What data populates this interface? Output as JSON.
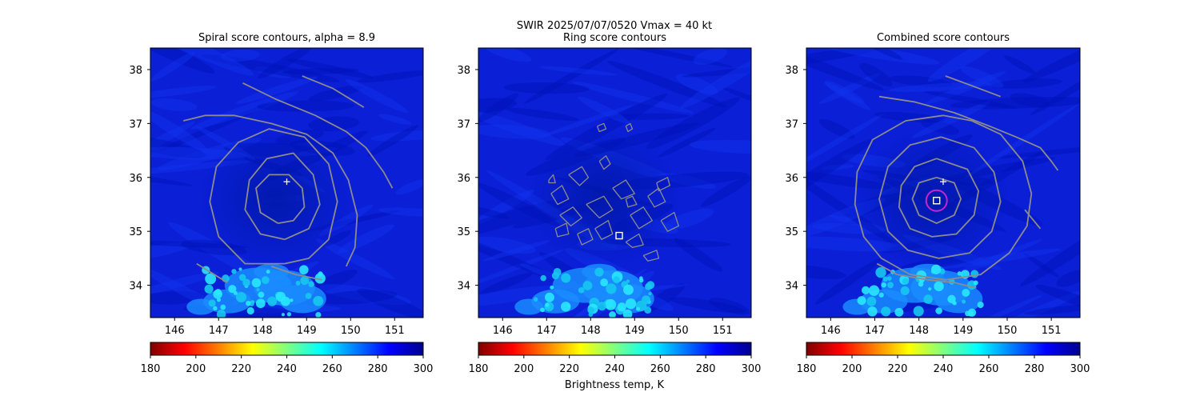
{
  "figure": {
    "suptitle_line1": "SWIR  2025/07/07/0520    Vmax = 40 kt",
    "colorbar_label": "Brightness temp, K"
  },
  "chart_data": [
    {
      "type": "heatmap",
      "title": "Spiral score contours, alpha =  8.9",
      "xlim": [
        145.45,
        151.65
      ],
      "ylim": [
        33.4,
        38.4
      ],
      "xticks": [
        146,
        147,
        148,
        149,
        150,
        151
      ],
      "yticks": [
        34,
        35,
        36,
        37,
        38
      ],
      "colorbar": {
        "cmap": "jet_r",
        "range": [
          180,
          300
        ],
        "ticks": [
          180,
          200,
          220,
          240,
          260,
          280,
          300
        ]
      },
      "markers": [
        {
          "kind": "plus",
          "lon": 148.55,
          "lat": 35.92,
          "color": "#ffffff"
        }
      ],
      "contours": [
        [
          [
            147.55,
            37.75
          ],
          [
            148.3,
            37.45
          ],
          [
            149.2,
            37.15
          ],
          [
            149.9,
            36.85
          ],
          [
            150.35,
            36.55
          ],
          [
            150.75,
            36.1
          ],
          [
            150.95,
            35.8
          ]
        ],
        [
          [
            148.9,
            37.88
          ],
          [
            149.6,
            37.65
          ],
          [
            150.3,
            37.3
          ]
        ],
        [
          [
            146.2,
            37.05
          ],
          [
            146.7,
            37.15
          ],
          [
            147.35,
            37.15
          ],
          [
            148.2,
            37.0
          ],
          [
            149.0,
            36.8
          ],
          [
            149.6,
            36.45
          ],
          [
            149.95,
            35.95
          ],
          [
            150.15,
            35.3
          ],
          [
            150.1,
            34.7
          ],
          [
            149.9,
            34.35
          ]
        ],
        [
          [
            146.5,
            34.4
          ],
          [
            147.2,
            34.05
          ]
        ],
        [
          [
            148.2,
            34.35
          ],
          [
            148.75,
            34.2
          ],
          [
            149.35,
            34.1
          ]
        ],
        [
          [
            148.5,
            34.4
          ],
          [
            147.6,
            34.4
          ],
          [
            147.0,
            34.9
          ],
          [
            146.8,
            35.55
          ],
          [
            146.95,
            36.2
          ],
          [
            147.45,
            36.65
          ],
          [
            148.15,
            36.9
          ],
          [
            148.95,
            36.75
          ],
          [
            149.5,
            36.25
          ],
          [
            149.7,
            35.55
          ],
          [
            149.5,
            34.85
          ],
          [
            149.05,
            34.5
          ],
          [
            148.5,
            34.4
          ]
        ],
        [
          [
            148.5,
            34.85
          ],
          [
            147.95,
            34.95
          ],
          [
            147.6,
            35.4
          ],
          [
            147.7,
            35.95
          ],
          [
            148.1,
            36.35
          ],
          [
            148.7,
            36.45
          ],
          [
            149.15,
            36.05
          ],
          [
            149.3,
            35.5
          ],
          [
            149.05,
            35.05
          ],
          [
            148.5,
            34.85
          ]
        ],
        [
          [
            148.35,
            35.15
          ],
          [
            147.95,
            35.35
          ],
          [
            147.85,
            35.8
          ],
          [
            148.15,
            36.05
          ],
          [
            148.6,
            36.05
          ],
          [
            148.9,
            35.8
          ],
          [
            148.95,
            35.45
          ],
          [
            148.7,
            35.2
          ],
          [
            148.35,
            35.15
          ]
        ]
      ],
      "contour_color": "#8c8c8c"
    },
    {
      "type": "heatmap",
      "title": "Ring score contours",
      "xlim": [
        145.45,
        151.65
      ],
      "ylim": [
        33.4,
        38.4
      ],
      "xticks": [
        146,
        147,
        148,
        149,
        150,
        151
      ],
      "yticks": [
        34,
        35,
        36,
        37,
        38
      ],
      "colorbar": {
        "cmap": "jet_r",
        "range": [
          180,
          300
        ],
        "ticks": [
          180,
          200,
          220,
          240,
          260,
          280,
          300
        ]
      },
      "markers": [
        {
          "kind": "square",
          "lon": 148.65,
          "lat": 34.92,
          "color": "#ffffff"
        }
      ],
      "contours": [
        [
          [
            147.5,
            36.05
          ],
          [
            147.8,
            36.2
          ],
          [
            147.95,
            36.0
          ],
          [
            147.75,
            35.85
          ],
          [
            147.5,
            36.05
          ]
        ],
        [
          [
            147.1,
            35.7
          ],
          [
            147.35,
            35.85
          ],
          [
            147.5,
            35.6
          ],
          [
            147.25,
            35.5
          ],
          [
            147.1,
            35.7
          ]
        ],
        [
          [
            147.3,
            35.3
          ],
          [
            147.6,
            35.45
          ],
          [
            147.8,
            35.25
          ],
          [
            147.55,
            35.1
          ],
          [
            147.3,
            35.3
          ]
        ],
        [
          [
            147.9,
            35.5
          ],
          [
            148.3,
            35.65
          ],
          [
            148.5,
            35.4
          ],
          [
            148.2,
            35.25
          ],
          [
            147.9,
            35.5
          ]
        ],
        [
          [
            148.5,
            35.8
          ],
          [
            148.8,
            35.95
          ],
          [
            149.0,
            35.7
          ],
          [
            148.7,
            35.6
          ],
          [
            148.5,
            35.8
          ]
        ],
        [
          [
            148.9,
            35.3
          ],
          [
            149.2,
            35.45
          ],
          [
            149.4,
            35.2
          ],
          [
            149.1,
            35.05
          ],
          [
            148.9,
            35.3
          ]
        ],
        [
          [
            149.3,
            35.65
          ],
          [
            149.55,
            35.8
          ],
          [
            149.7,
            35.55
          ],
          [
            149.45,
            35.45
          ],
          [
            149.3,
            35.65
          ]
        ],
        [
          [
            149.6,
            35.2
          ],
          [
            149.9,
            35.35
          ],
          [
            150.0,
            35.1
          ],
          [
            149.75,
            35.0
          ],
          [
            149.6,
            35.2
          ]
        ],
        [
          [
            149.5,
            35.9
          ],
          [
            149.75,
            36.0
          ],
          [
            149.8,
            35.85
          ],
          [
            149.55,
            35.75
          ],
          [
            149.5,
            35.9
          ]
        ],
        [
          [
            148.1,
            35.05
          ],
          [
            148.4,
            35.2
          ],
          [
            148.5,
            34.95
          ],
          [
            148.25,
            34.85
          ],
          [
            148.1,
            35.05
          ]
        ],
        [
          [
            147.7,
            34.95
          ],
          [
            147.95,
            35.05
          ],
          [
            148.05,
            34.85
          ],
          [
            147.8,
            34.75
          ],
          [
            147.7,
            34.95
          ]
        ],
        [
          [
            148.8,
            34.8
          ],
          [
            149.1,
            34.95
          ],
          [
            149.2,
            34.75
          ],
          [
            148.95,
            34.7
          ],
          [
            148.8,
            34.8
          ]
        ],
        [
          [
            147.2,
            35.05
          ],
          [
            147.45,
            35.15
          ],
          [
            147.5,
            34.95
          ],
          [
            147.25,
            34.9
          ],
          [
            147.2,
            35.05
          ]
        ],
        [
          [
            148.2,
            36.3
          ],
          [
            148.35,
            36.4
          ],
          [
            148.45,
            36.25
          ],
          [
            148.3,
            36.15
          ],
          [
            148.2,
            36.3
          ]
        ],
        [
          [
            148.15,
            36.95
          ],
          [
            148.3,
            37.0
          ],
          [
            148.35,
            36.9
          ],
          [
            148.2,
            36.85
          ],
          [
            148.15,
            36.95
          ]
        ],
        [
          [
            147.05,
            35.95
          ],
          [
            147.15,
            36.05
          ],
          [
            147.2,
            35.9
          ],
          [
            147.05,
            35.9
          ],
          [
            147.05,
            35.95
          ]
        ],
        [
          [
            148.8,
            36.95
          ],
          [
            148.9,
            37.0
          ],
          [
            148.95,
            36.9
          ],
          [
            148.85,
            36.85
          ],
          [
            148.8,
            36.95
          ]
        ],
        [
          [
            149.2,
            34.55
          ],
          [
            149.5,
            34.65
          ],
          [
            149.55,
            34.5
          ],
          [
            149.3,
            34.45
          ],
          [
            149.2,
            34.55
          ]
        ],
        [
          [
            148.8,
            35.6
          ],
          [
            148.95,
            35.65
          ],
          [
            149.05,
            35.5
          ],
          [
            148.85,
            35.45
          ],
          [
            148.8,
            35.6
          ]
        ]
      ],
      "contour_color": "#8c8c8c"
    },
    {
      "type": "heatmap",
      "title": "Combined score contours",
      "xlim": [
        145.45,
        151.65
      ],
      "ylim": [
        33.4,
        38.4
      ],
      "xticks": [
        146,
        147,
        148,
        149,
        150,
        151
      ],
      "yticks": [
        34,
        35,
        36,
        37,
        38
      ],
      "colorbar": {
        "cmap": "jet_r",
        "range": [
          180,
          300
        ],
        "ticks": [
          180,
          200,
          220,
          240,
          260,
          280,
          300
        ]
      },
      "markers": [
        {
          "kind": "plus",
          "lon": 148.55,
          "lat": 35.92,
          "color": "#ffffff"
        },
        {
          "kind": "square",
          "lon": 148.4,
          "lat": 35.57,
          "color": "#ffffff"
        },
        {
          "kind": "circle",
          "lon": 148.4,
          "lat": 35.57,
          "color": "#cc22cc"
        }
      ],
      "contours": [
        [
          [
            148.6,
            37.88
          ],
          [
            149.2,
            37.7
          ],
          [
            149.85,
            37.5
          ]
        ],
        [
          [
            147.1,
            37.5
          ],
          [
            147.9,
            37.4
          ],
          [
            148.8,
            37.2
          ],
          [
            149.6,
            36.95
          ],
          [
            150.2,
            36.75
          ],
          [
            150.75,
            36.55
          ],
          [
            151.0,
            36.3
          ],
          [
            151.15,
            36.13
          ]
        ],
        [
          [
            148.55,
            37.15
          ],
          [
            147.7,
            37.05
          ],
          [
            146.95,
            36.7
          ],
          [
            146.6,
            36.1
          ],
          [
            146.55,
            35.5
          ],
          [
            146.75,
            34.9
          ],
          [
            147.15,
            34.5
          ],
          [
            147.8,
            34.2
          ],
          [
            148.6,
            34.1
          ],
          [
            149.4,
            34.2
          ],
          [
            150.05,
            34.6
          ],
          [
            150.45,
            35.1
          ],
          [
            150.55,
            35.7
          ],
          [
            150.35,
            36.3
          ],
          [
            149.85,
            36.8
          ],
          [
            149.2,
            37.05
          ],
          [
            148.55,
            37.15
          ]
        ],
        [
          [
            148.5,
            36.75
          ],
          [
            147.8,
            36.6
          ],
          [
            147.3,
            36.2
          ],
          [
            147.1,
            35.6
          ],
          [
            147.3,
            35.0
          ],
          [
            147.75,
            34.65
          ],
          [
            148.45,
            34.5
          ],
          [
            149.15,
            34.6
          ],
          [
            149.65,
            35.0
          ],
          [
            149.85,
            35.55
          ],
          [
            149.7,
            36.1
          ],
          [
            149.25,
            36.55
          ],
          [
            148.5,
            36.75
          ]
        ],
        [
          [
            148.4,
            36.35
          ],
          [
            147.9,
            36.2
          ],
          [
            147.6,
            35.85
          ],
          [
            147.55,
            35.45
          ],
          [
            147.8,
            35.05
          ],
          [
            148.3,
            34.9
          ],
          [
            148.85,
            34.95
          ],
          [
            149.25,
            35.3
          ],
          [
            149.35,
            35.75
          ],
          [
            149.1,
            36.15
          ],
          [
            148.4,
            36.35
          ]
        ],
        [
          [
            148.4,
            36.0
          ],
          [
            148.0,
            35.9
          ],
          [
            147.85,
            35.6
          ],
          [
            148.0,
            35.3
          ],
          [
            148.4,
            35.15
          ],
          [
            148.8,
            35.3
          ],
          [
            148.95,
            35.6
          ],
          [
            148.8,
            35.9
          ],
          [
            148.4,
            36.0
          ]
        ],
        [
          [
            150.4,
            35.4
          ],
          [
            150.6,
            35.2
          ],
          [
            150.75,
            35.05
          ]
        ],
        [
          [
            147.05,
            34.4
          ],
          [
            147.5,
            34.2
          ],
          [
            148.2,
            34.1
          ],
          [
            148.8,
            34.05
          ],
          [
            149.3,
            33.95
          ]
        ]
      ],
      "contour_color": "#8c8c8c"
    }
  ]
}
